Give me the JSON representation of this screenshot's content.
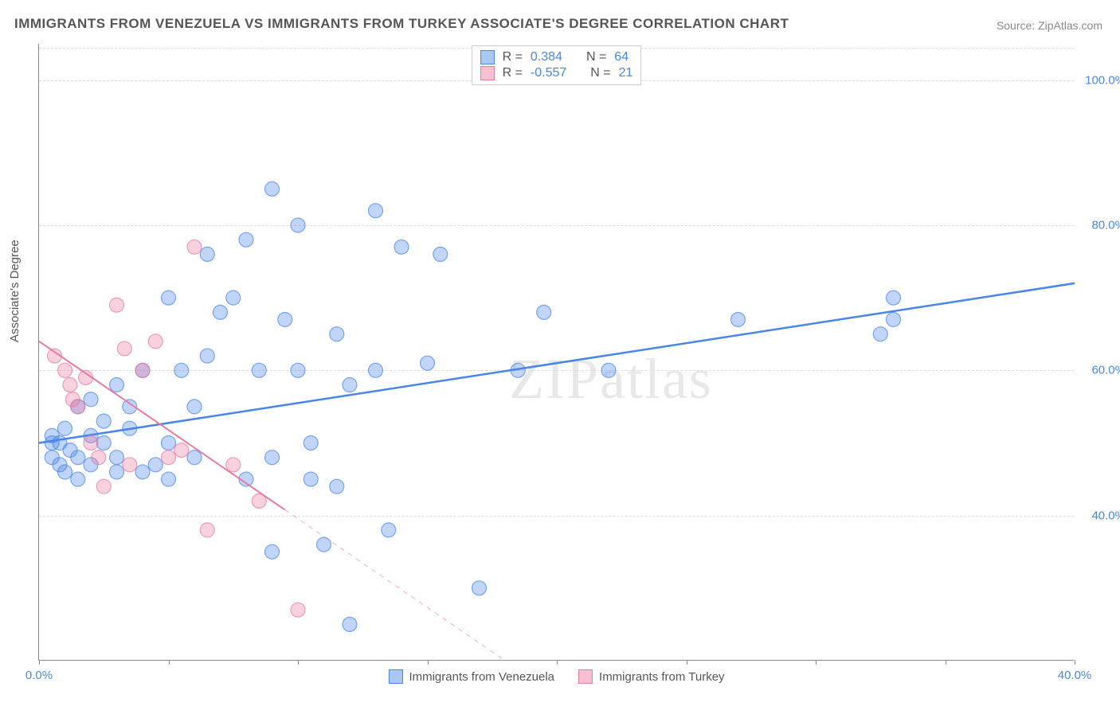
{
  "title": "IMMIGRANTS FROM VENEZUELA VS IMMIGRANTS FROM TURKEY ASSOCIATE'S DEGREE CORRELATION CHART",
  "source": "Source: ZipAtlas.com",
  "watermark": "ZIPatlas",
  "y_axis_label": "Associate's Degree",
  "chart": {
    "type": "scatter",
    "background_color": "#ffffff",
    "grid_color": "#dddddd",
    "axis_color": "#888888",
    "xlim": [
      0,
      40
    ],
    "ylim": [
      20,
      105
    ],
    "x_ticks": [
      0,
      5,
      10,
      15,
      20,
      25,
      30,
      35,
      40
    ],
    "x_tick_labels": {
      "0": "0.0%",
      "40": "40.0%"
    },
    "y_ticks": [
      40,
      60,
      80,
      100
    ],
    "y_tick_labels": {
      "40": "40.0%",
      "60": "60.0%",
      "80": "80.0%",
      "100": "100.0%"
    },
    "y_tick_color": "#4a86e8",
    "x_tick_color": "#4a86e8",
    "marker_radius": 9,
    "marker_fill_opacity": 0.35,
    "marker_stroke_width": 1.2,
    "series": [
      {
        "name": "Immigrants from Venezuela",
        "color": "#4a86e8",
        "fill_color": "#a8c8f0",
        "r_value": "0.384",
        "n_value": "64",
        "regression": {
          "x1": 0,
          "y1": 50,
          "x2": 40,
          "y2": 72,
          "solid_to_x": 40,
          "width": 2.5
        },
        "points": [
          [
            0.5,
            50
          ],
          [
            0.5,
            48
          ],
          [
            0.5,
            51
          ],
          [
            0.8,
            47
          ],
          [
            0.8,
            50
          ],
          [
            1.0,
            52
          ],
          [
            1.0,
            46
          ],
          [
            1.2,
            49
          ],
          [
            1.5,
            48
          ],
          [
            1.5,
            55
          ],
          [
            1.5,
            45
          ],
          [
            2.0,
            51
          ],
          [
            2.0,
            56
          ],
          [
            2.0,
            47
          ],
          [
            2.5,
            50
          ],
          [
            2.5,
            53
          ],
          [
            3.0,
            48
          ],
          [
            3.0,
            58
          ],
          [
            3.5,
            52
          ],
          [
            3.5,
            55
          ],
          [
            4.0,
            46
          ],
          [
            4.0,
            60
          ],
          [
            5.0,
            50
          ],
          [
            5.0,
            70
          ],
          [
            5.0,
            45
          ],
          [
            5.5,
            60
          ],
          [
            6.0,
            55
          ],
          [
            6.0,
            48
          ],
          [
            6.5,
            62
          ],
          [
            6.5,
            76
          ],
          [
            7.0,
            68
          ],
          [
            7.5,
            70
          ],
          [
            8.0,
            45
          ],
          [
            8.0,
            78
          ],
          [
            8.5,
            60
          ],
          [
            9.0,
            48
          ],
          [
            9.0,
            85
          ],
          [
            9.0,
            35
          ],
          [
            9.5,
            67
          ],
          [
            10.0,
            60
          ],
          [
            10.0,
            80
          ],
          [
            10.5,
            45
          ],
          [
            10.5,
            50
          ],
          [
            11.0,
            36
          ],
          [
            11.5,
            44
          ],
          [
            11.5,
            65
          ],
          [
            12.0,
            58
          ],
          [
            12.0,
            25
          ],
          [
            13.0,
            82
          ],
          [
            13.0,
            60
          ],
          [
            13.5,
            38
          ],
          [
            14.0,
            77
          ],
          [
            15.0,
            61
          ],
          [
            15.5,
            76
          ],
          [
            17.0,
            30
          ],
          [
            18.5,
            60
          ],
          [
            19.5,
            68
          ],
          [
            22.0,
            60
          ],
          [
            27.0,
            67
          ],
          [
            32.5,
            65
          ],
          [
            33.0,
            67
          ],
          [
            33.0,
            70
          ],
          [
            3.0,
            46
          ],
          [
            4.5,
            47
          ]
        ]
      },
      {
        "name": "Immigrants from Turkey",
        "color": "#e87ba0",
        "fill_color": "#f5c0d0",
        "r_value": "-0.557",
        "n_value": "21",
        "regression": {
          "x1": 0,
          "y1": 64,
          "x2": 18,
          "y2": 20,
          "solid_to_x": 9.5,
          "width": 2
        },
        "points": [
          [
            0.6,
            62
          ],
          [
            1.0,
            60
          ],
          [
            1.2,
            58
          ],
          [
            1.3,
            56
          ],
          [
            1.5,
            55
          ],
          [
            1.8,
            59
          ],
          [
            2.0,
            50
          ],
          [
            2.3,
            48
          ],
          [
            2.5,
            44
          ],
          [
            3.0,
            69
          ],
          [
            3.3,
            63
          ],
          [
            3.5,
            47
          ],
          [
            4.0,
            60
          ],
          [
            4.5,
            64
          ],
          [
            5.0,
            48
          ],
          [
            5.5,
            49
          ],
          [
            6.0,
            77
          ],
          [
            6.5,
            38
          ],
          [
            7.5,
            47
          ],
          [
            8.5,
            42
          ],
          [
            10.0,
            27
          ]
        ]
      }
    ]
  },
  "legend_bottom": {
    "series1": "Immigrants from Venezuela",
    "series2": "Immigrants from Turkey"
  },
  "legend_stats_labels": {
    "r": "R =",
    "n": "N ="
  }
}
